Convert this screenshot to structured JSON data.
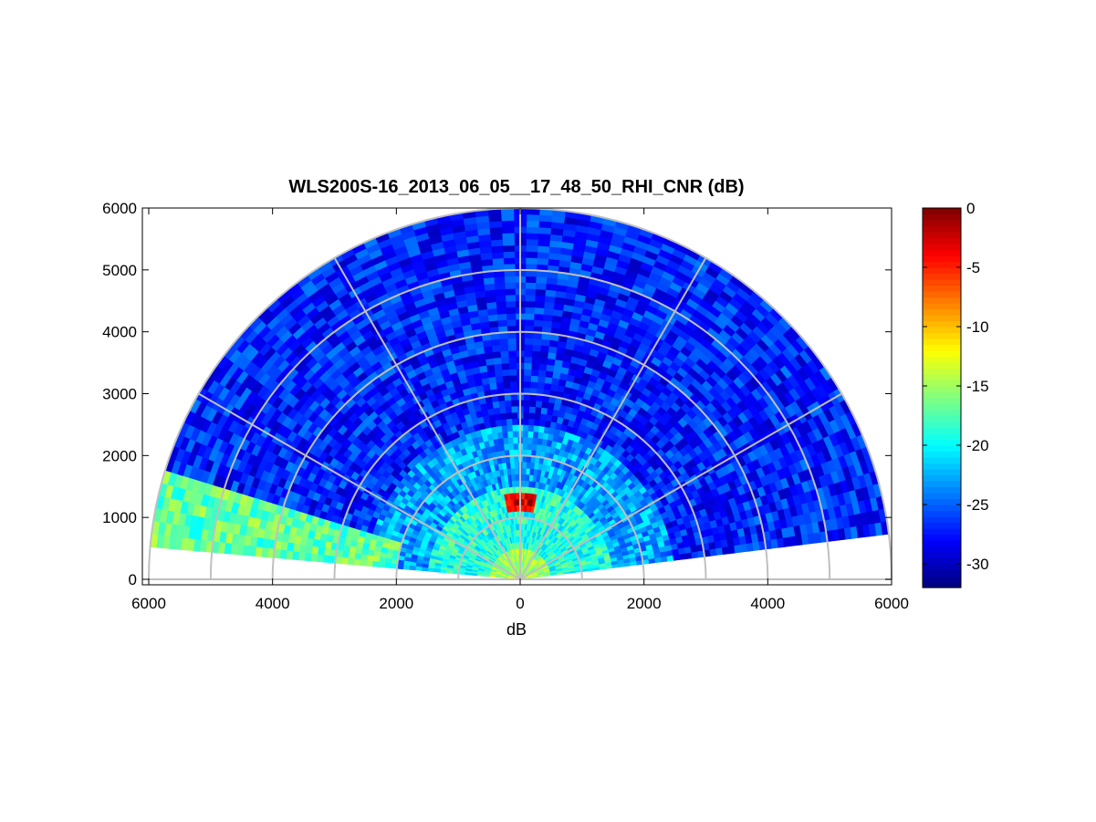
{
  "chart_data": {
    "type": "heatmap",
    "subtype": "polar-sector (RHI scan)",
    "title": "WLS200S-16_2013_06_05__17_48_50_RHI_CNR (dB)",
    "xlabel": "dB",
    "ylabel": "",
    "x_ticks": [
      "6000",
      "4000",
      "2000",
      "0",
      "2000",
      "4000",
      "6000"
    ],
    "y_ticks": [
      "0",
      "1000",
      "2000",
      "3000",
      "4000",
      "5000",
      "6000"
    ],
    "xlim": [
      -6000,
      6000
    ],
    "ylim": [
      0,
      6000
    ],
    "range_rings": [
      1000,
      2000,
      3000,
      4000,
      5000,
      6000
    ],
    "radial_spokes_deg": [
      0,
      30,
      60,
      90,
      120,
      150,
      180
    ],
    "scan": {
      "elevation_min_deg": 7,
      "elevation_max_deg": 175,
      "max_range": 6000,
      "range_gate": 100
    },
    "colorbar": {
      "colormap": "jet",
      "min": -32,
      "max": 0,
      "ticks": [
        "0",
        "-5",
        "-10",
        "-15",
        "-20",
        "-25",
        "-30"
      ]
    },
    "value_profile": [
      {
        "range_max": 500,
        "cnr_db": -15
      },
      {
        "range_max": 1500,
        "cnr_db": -19
      },
      {
        "range_max": 2500,
        "cnr_db": -23
      },
      {
        "range_max": 6000,
        "cnr_db": -27
      }
    ],
    "high_cnr_regions": [
      {
        "description": "low-elevation aerosol layer",
        "elevation_deg": [
          164,
          175
        ],
        "range": [
          2000,
          6000
        ],
        "cnr_db": -17
      },
      {
        "description": "cloud return near zenith",
        "elevation_deg": [
          80,
          100
        ],
        "range": [
          1150,
          1350
        ],
        "cnr_db": -3
      }
    ],
    "grid": true,
    "grid_color": "#c0c0c0"
  }
}
